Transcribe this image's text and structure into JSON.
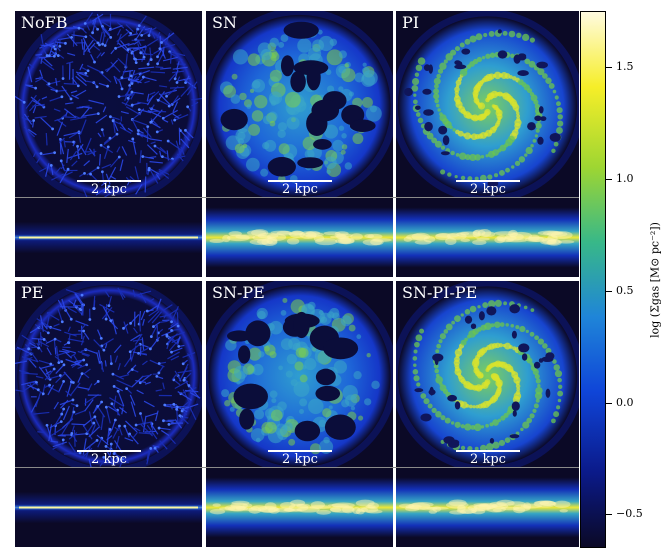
{
  "panels": [
    {
      "label": "NoFB",
      "scale_label": "2 kpc",
      "style": "clumpy"
    },
    {
      "label": "SN",
      "scale_label": "2 kpc",
      "style": "bubbly"
    },
    {
      "label": "PI",
      "scale_label": "2 kpc",
      "style": "smooth"
    },
    {
      "label": "PE",
      "scale_label": "2 kpc",
      "style": "clumpy"
    },
    {
      "label": "SN-PE",
      "scale_label": "2 kpc",
      "style": "bubbly"
    },
    {
      "label": "SN-PI-PE",
      "scale_label": "2 kpc",
      "style": "smooth"
    }
  ],
  "colorbar": {
    "label": "log (Σgas [M⊙ pc⁻²])",
    "range": [
      -0.65,
      1.75
    ],
    "ticks": [
      {
        "value": -0.5,
        "label": "−0.5"
      },
      {
        "value": 0.0,
        "label": "0.0"
      },
      {
        "value": 0.5,
        "label": "0.5"
      },
      {
        "value": 1.0,
        "label": "1.0"
      },
      {
        "value": 1.5,
        "label": "1.5"
      }
    ],
    "colormap": [
      "#0b0926",
      "#0b1a8a",
      "#0f45d8",
      "#1f85d8",
      "#38b888",
      "#9ed632",
      "#f6ee28",
      "#fffbe0"
    ]
  }
}
